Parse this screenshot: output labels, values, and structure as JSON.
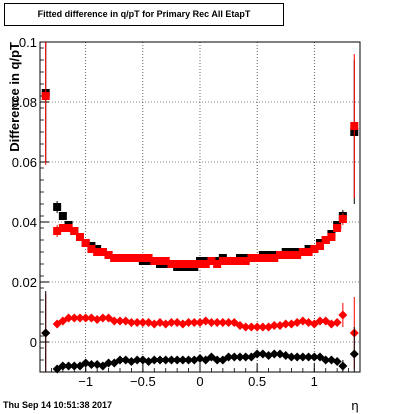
{
  "chart_data": {
    "type": "scatter",
    "title": "Fitted difference in q/pT for Primary Rec All EtapT",
    "xlabel": "η",
    "ylabel": "Difference in q/pT",
    "xlim": [
      -1.4,
      1.4
    ],
    "ylim": [
      -0.01,
      0.1
    ],
    "x_ticks": [
      -1,
      -0.5,
      0,
      0.5,
      1
    ],
    "x_tick_labels": [
      "−1",
      "−0.5",
      "0",
      "0.5",
      "1"
    ],
    "y_ticks": [
      0,
      0.02,
      0.04,
      0.06,
      0.08,
      0.1
    ],
    "y_tick_labels": [
      "0",
      "0.02",
      "0.04",
      "0.06",
      "0.08",
      "0.1"
    ],
    "grid": true,
    "colors": {
      "black_series": "#000000",
      "red_series": "#ff0000"
    },
    "x": [
      -1.35,
      -1.25,
      -1.2,
      -1.15,
      -1.1,
      -1.05,
      -1.0,
      -0.95,
      -0.9,
      -0.85,
      -0.8,
      -0.75,
      -0.7,
      -0.65,
      -0.6,
      -0.55,
      -0.5,
      -0.45,
      -0.4,
      -0.35,
      -0.3,
      -0.25,
      -0.2,
      -0.15,
      -0.1,
      -0.05,
      0.0,
      0.05,
      0.1,
      0.15,
      0.2,
      0.25,
      0.3,
      0.35,
      0.4,
      0.45,
      0.5,
      0.55,
      0.6,
      0.65,
      0.7,
      0.75,
      0.8,
      0.85,
      0.9,
      0.95,
      1.0,
      1.05,
      1.1,
      1.15,
      1.2,
      1.25,
      1.35
    ],
    "series": [
      {
        "marker": "square",
        "color": "black",
        "values": [
          0.083,
          0.045,
          0.042,
          0.039,
          0.037,
          0.035,
          0.033,
          0.032,
          0.031,
          0.03,
          0.029,
          0.028,
          0.028,
          0.028,
          0.028,
          0.028,
          0.027,
          0.027,
          0.027,
          0.026,
          0.026,
          0.026,
          0.025,
          0.025,
          0.025,
          0.025,
          0.027,
          0.027,
          0.027,
          0.027,
          0.028,
          0.027,
          0.027,
          0.028,
          0.028,
          0.028,
          0.028,
          0.029,
          0.029,
          0.029,
          0.029,
          0.03,
          0.03,
          0.03,
          0.03,
          0.031,
          0.031,
          0.033,
          0.034,
          0.036,
          0.039,
          0.042,
          0.07
        ],
        "errors": [
          0.023,
          0.002,
          0.001,
          0.001,
          0.001,
          0.001,
          0.001,
          0.001,
          0.001,
          0.001,
          0.001,
          0.001,
          0.001,
          0.001,
          0.001,
          0.001,
          0.001,
          0.001,
          0.001,
          0.001,
          0.001,
          0.001,
          0.001,
          0.001,
          0.001,
          0.001,
          0.001,
          0.001,
          0.001,
          0.001,
          0.001,
          0.001,
          0.001,
          0.001,
          0.001,
          0.001,
          0.001,
          0.001,
          0.001,
          0.001,
          0.001,
          0.001,
          0.001,
          0.001,
          0.001,
          0.001,
          0.001,
          0.001,
          0.001,
          0.001,
          0.001,
          0.002,
          0.024
        ]
      },
      {
        "marker": "square",
        "color": "red",
        "values": [
          0.082,
          0.037,
          0.038,
          0.038,
          0.037,
          0.035,
          0.033,
          0.031,
          0.03,
          0.03,
          0.029,
          0.028,
          0.028,
          0.028,
          0.028,
          0.028,
          0.028,
          0.028,
          0.027,
          0.027,
          0.027,
          0.026,
          0.026,
          0.026,
          0.026,
          0.026,
          0.026,
          0.026,
          0.027,
          0.026,
          0.027,
          0.027,
          0.027,
          0.027,
          0.027,
          0.028,
          0.028,
          0.028,
          0.028,
          0.028,
          0.029,
          0.029,
          0.029,
          0.029,
          0.03,
          0.03,
          0.031,
          0.032,
          0.034,
          0.035,
          0.038,
          0.041,
          0.072
        ],
        "errors": [
          0.023,
          0.002,
          0.001,
          0.001,
          0.001,
          0.001,
          0.001,
          0.001,
          0.001,
          0.001,
          0.001,
          0.001,
          0.001,
          0.001,
          0.001,
          0.001,
          0.001,
          0.001,
          0.001,
          0.001,
          0.001,
          0.001,
          0.001,
          0.001,
          0.001,
          0.001,
          0.001,
          0.001,
          0.001,
          0.001,
          0.001,
          0.001,
          0.001,
          0.001,
          0.001,
          0.001,
          0.001,
          0.001,
          0.001,
          0.001,
          0.001,
          0.001,
          0.001,
          0.001,
          0.001,
          0.001,
          0.001,
          0.001,
          0.001,
          0.001,
          0.001,
          0.002,
          0.024
        ]
      },
      {
        "marker": "diamond",
        "color": "red",
        "values": [
          0.003,
          0.006,
          0.007,
          0.008,
          0.008,
          0.008,
          0.008,
          0.008,
          0.0075,
          0.008,
          0.008,
          0.007,
          0.007,
          0.007,
          0.0065,
          0.0065,
          0.0065,
          0.0065,
          0.006,
          0.0065,
          0.006,
          0.0065,
          0.0065,
          0.006,
          0.0065,
          0.0065,
          0.0065,
          0.007,
          0.0065,
          0.0065,
          0.0065,
          0.0065,
          0.0065,
          0.0055,
          0.005,
          0.005,
          0.005,
          0.005,
          0.005,
          0.0055,
          0.0055,
          0.006,
          0.006,
          0.0065,
          0.007,
          0.0065,
          0.006,
          0.007,
          0.007,
          0.006,
          0.0065,
          0.009,
          0.003
        ],
        "errors": [
          0.013,
          0.0005,
          0.0005,
          0.0005,
          0.0005,
          0.0005,
          0.0005,
          0.0005,
          0.0005,
          0.0005,
          0.0005,
          0.0005,
          0.0005,
          0.0005,
          0.0005,
          0.0005,
          0.0005,
          0.0005,
          0.0005,
          0.0005,
          0.0005,
          0.0005,
          0.0005,
          0.0005,
          0.0005,
          0.0005,
          0.0005,
          0.0005,
          0.0005,
          0.0005,
          0.0005,
          0.0005,
          0.0005,
          0.0005,
          0.0005,
          0.0005,
          0.0005,
          0.0005,
          0.0005,
          0.0005,
          0.0005,
          0.0005,
          0.0005,
          0.0005,
          0.0005,
          0.0005,
          0.0005,
          0.0005,
          0.0005,
          0.0005,
          0.0005,
          0.004,
          0.012
        ]
      },
      {
        "marker": "diamond",
        "color": "black",
        "values": [
          0.003,
          -0.009,
          -0.008,
          -0.008,
          -0.008,
          -0.008,
          -0.007,
          -0.0075,
          -0.0075,
          -0.008,
          -0.007,
          -0.007,
          -0.006,
          -0.006,
          -0.0065,
          -0.006,
          -0.006,
          -0.0065,
          -0.006,
          -0.006,
          -0.006,
          -0.006,
          -0.006,
          -0.006,
          -0.006,
          -0.006,
          -0.0055,
          -0.006,
          -0.005,
          -0.006,
          -0.006,
          -0.005,
          -0.005,
          -0.005,
          -0.005,
          -0.005,
          -0.004,
          -0.004,
          -0.0045,
          -0.004,
          -0.004,
          -0.0045,
          -0.005,
          -0.005,
          -0.005,
          -0.005,
          -0.005,
          -0.005,
          -0.006,
          -0.006,
          -0.0065,
          -0.008,
          -0.004
        ],
        "errors": [
          0.014,
          0.0005,
          0.0005,
          0.0005,
          0.0005,
          0.0005,
          0.0005,
          0.0005,
          0.0005,
          0.0005,
          0.0005,
          0.0005,
          0.0005,
          0.0005,
          0.0005,
          0.0005,
          0.0005,
          0.0005,
          0.0005,
          0.0005,
          0.0005,
          0.0005,
          0.0005,
          0.0005,
          0.0005,
          0.0005,
          0.0005,
          0.0005,
          0.0005,
          0.0005,
          0.0005,
          0.0005,
          0.0005,
          0.0005,
          0.0005,
          0.0005,
          0.0005,
          0.0005,
          0.0005,
          0.0005,
          0.0005,
          0.0005,
          0.0005,
          0.0005,
          0.0005,
          0.0005,
          0.0005,
          0.0005,
          0.0005,
          0.0005,
          0.0005,
          0.002,
          0.009
        ]
      }
    ]
  },
  "footer": {
    "datestamp": "Thu Sep 14 10:51:38 2017"
  }
}
